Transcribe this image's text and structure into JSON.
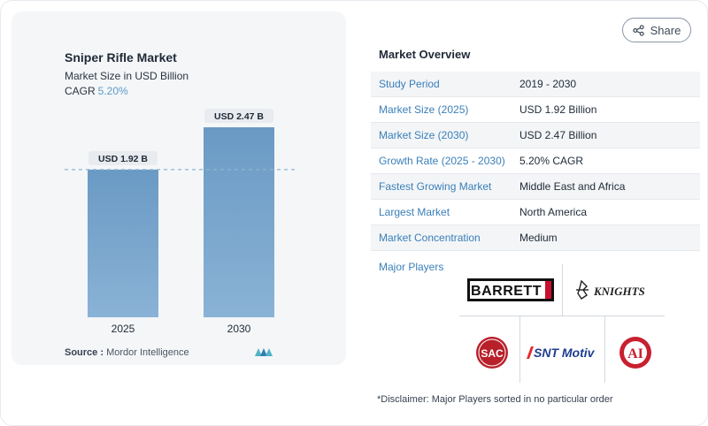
{
  "chart_data": {
    "type": "bar",
    "title": "Sniper Rifle Market",
    "subtitle": "Market Size in USD Billion",
    "cagr_label": "CAGR",
    "cagr_value": "5.20%",
    "categories": [
      "2025",
      "2030"
    ],
    "values": [
      1.92,
      2.47
    ],
    "data_labels": [
      "USD 1.92 B",
      "USD 2.47 B"
    ],
    "ylim": [
      0,
      2.7
    ],
    "colors": {
      "bar": "#6a9ac4",
      "bar_light": "#8ab2d6",
      "label_bg": "#e8ebef",
      "dashed": "#8fb4d3"
    },
    "grid": false
  },
  "source": {
    "label": "Source :",
    "text": "Mordor Intelligence"
  },
  "share": {
    "label": "Share",
    "icon": "share-icon"
  },
  "overview": {
    "title": "Market Overview",
    "rows": [
      {
        "label": "Study Period",
        "value": "2019 - 2030"
      },
      {
        "label": "Market Size (2025)",
        "value": "USD 1.92 Billion"
      },
      {
        "label": "Market Size (2030)",
        "value": "USD 2.47 Billion"
      },
      {
        "label": "Growth Rate (2025 - 2030)",
        "value": "5.20% CAGR"
      },
      {
        "label": "Fastest Growing Market",
        "value": "Middle East and Africa"
      },
      {
        "label": "Largest Market",
        "value": "North America"
      },
      {
        "label": "Market Concentration",
        "value": "Medium"
      }
    ]
  },
  "major_players": {
    "title": "Major Players",
    "logos": [
      {
        "name": "barrett-logo",
        "text": "BARRETT"
      },
      {
        "name": "knights-armament-logo",
        "text": "KNIGHTS"
      },
      {
        "name": "sac-logo",
        "text": "SAC"
      },
      {
        "name": "snt-motiv-logo",
        "text": "SNT Motiv"
      },
      {
        "name": "ai-logo",
        "text": "AI"
      }
    ]
  },
  "disclaimer": "*Disclaimer: Major Players sorted in no particular order"
}
